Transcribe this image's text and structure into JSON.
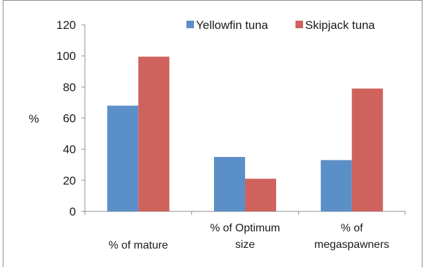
{
  "chart_data": {
    "type": "bar",
    "categories": [
      [
        "% of mature"
      ],
      [
        "% of Optimum",
        "size"
      ],
      [
        "% of",
        "megaspawners"
      ]
    ],
    "series": [
      {
        "name": "Yellowfin tuna",
        "values": [
          68,
          35,
          33
        ],
        "color": "#5b8fc8"
      },
      {
        "name": "Skipjack tuna",
        "values": [
          99.5,
          21,
          79
        ],
        "color": "#cf625c"
      }
    ],
    "yticks": [
      "0",
      "20",
      "40",
      "60",
      "80",
      "100",
      "120"
    ],
    "ylabel": "%",
    "ylim": [
      0,
      120
    ],
    "legend_position": "top",
    "grid": false
  }
}
